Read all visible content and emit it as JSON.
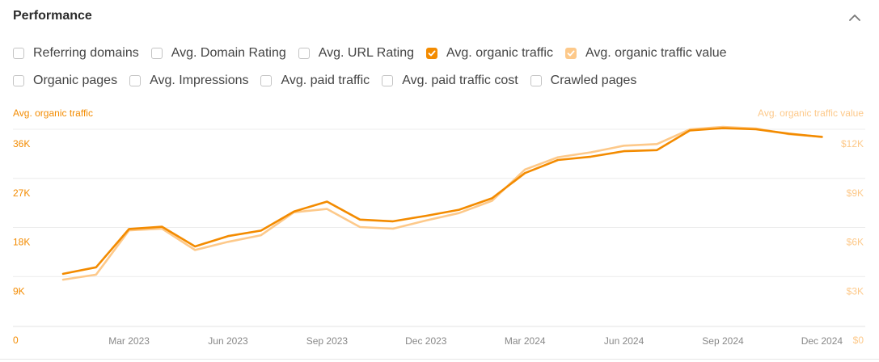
{
  "panel": {
    "title": "Performance",
    "collapse_icon": "chevron-up-icon"
  },
  "metrics_row1": [
    {
      "label": "Referring domains",
      "checked": false,
      "color": ""
    },
    {
      "label": "Avg. Domain Rating",
      "checked": false,
      "color": ""
    },
    {
      "label": "Avg. URL Rating",
      "checked": false,
      "color": ""
    },
    {
      "label": "Avg. organic traffic",
      "checked": true,
      "color": "#f38b00"
    },
    {
      "label": "Avg. organic traffic value",
      "checked": true,
      "color": "#fdc98a"
    }
  ],
  "metrics_row2": [
    {
      "label": "Organic pages",
      "checked": false,
      "color": ""
    },
    {
      "label": "Avg. Impressions",
      "checked": false,
      "color": ""
    },
    {
      "label": "Avg. paid traffic",
      "checked": false,
      "color": ""
    },
    {
      "label": "Avg. paid traffic cost",
      "checked": false,
      "color": ""
    },
    {
      "label": "Crawled pages",
      "checked": false,
      "color": ""
    }
  ],
  "chart_data": {
    "type": "line",
    "left_axis_label": "Avg. organic traffic",
    "right_axis_label": "Avg. organic traffic value",
    "left_ticks": [
      "0",
      "9K",
      "18K",
      "27K",
      "36K"
    ],
    "right_ticks": [
      "$0",
      "$3K",
      "$6K",
      "$9K",
      "$12K"
    ],
    "left_ylim": [
      0,
      36000
    ],
    "right_ylim": [
      0,
      12000
    ],
    "x_labels": [
      "Mar 2023",
      "Jun 2023",
      "Sep 2023",
      "Dec 2023",
      "Mar 2024",
      "Jun 2024",
      "Sep 2024",
      "Dec 2024"
    ],
    "x": [
      "Jan 2023",
      "Feb 2023",
      "Mar 2023",
      "Apr 2023",
      "May 2023",
      "Jun 2023",
      "Jul 2023",
      "Aug 2023",
      "Sep 2023",
      "Oct 2023",
      "Nov 2023",
      "Dec 2023",
      "Jan 2024",
      "Feb 2024",
      "Mar 2024",
      "Apr 2024",
      "May 2024",
      "Jun 2024",
      "Jul 2024",
      "Aug 2024",
      "Sep 2024",
      "Oct 2024",
      "Nov 2024",
      "Dec 2024"
    ],
    "grid": true,
    "series": [
      {
        "name": "Avg. organic traffic",
        "axis": "left",
        "color": "#f38b00",
        "values": [
          9600,
          10800,
          17800,
          18200,
          14600,
          16500,
          17500,
          21000,
          22800,
          19500,
          19200,
          20200,
          21300,
          23400,
          28000,
          30400,
          31000,
          32000,
          32200,
          35800,
          36200,
          36000,
          35200,
          34600
        ]
      },
      {
        "name": "Avg. organic traffic value",
        "axis": "right",
        "color": "#fdc98a",
        "values": [
          2850,
          3150,
          5850,
          5950,
          4650,
          5150,
          5550,
          6950,
          7150,
          6050,
          5950,
          6450,
          6900,
          7650,
          9550,
          10300,
          10600,
          11000,
          11100,
          12000,
          12150,
          12050,
          11700,
          11550
        ]
      }
    ]
  }
}
